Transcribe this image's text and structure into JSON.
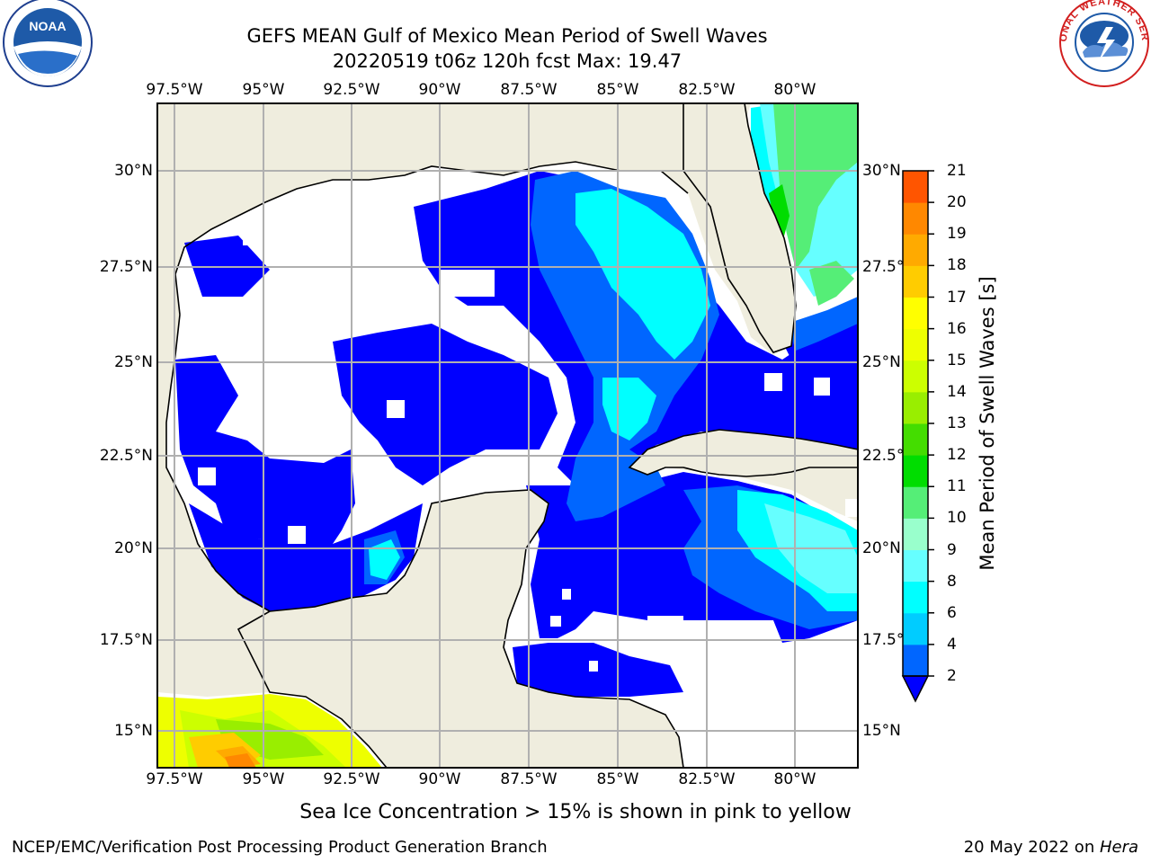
{
  "header": {
    "title_line1": "GEFS MEAN Gulf of Mexico Mean Period of Swell Waves",
    "title_line2": "20220519 t06z 120h fcst   Max: 19.47"
  },
  "logos": {
    "left": {
      "name": "noaa-logo",
      "text": "NOAA"
    },
    "right": {
      "name": "nws-logo",
      "text": "NATIONAL WEATHER SERVICE"
    }
  },
  "map": {
    "lon_labels": [
      "97.5°W",
      "95°W",
      "92.5°W",
      "90°W",
      "87.5°W",
      "85°W",
      "82.5°W",
      "80°W"
    ],
    "lat_labels": [
      "30°N",
      "27.5°N",
      "25°N",
      "22.5°N",
      "20°N",
      "17.5°N",
      "15°N"
    ],
    "colors": {
      "land": "#efedde",
      "grid": "#b0b0b0",
      "coast": "#000000"
    }
  },
  "colorbar": {
    "label": "Mean Period of Swell Waves [s]",
    "ticks": [
      "2",
      "4",
      "6",
      "8",
      "9",
      "10",
      "11",
      "12",
      "13",
      "14",
      "15",
      "16",
      "17",
      "18",
      "19",
      "20",
      "21"
    ],
    "colors": [
      "#0066ff",
      "#00ccff",
      "#00ffff",
      "#66ffff",
      "#99ffcc",
      "#55ee77",
      "#00dd00",
      "#44dd00",
      "#99ee00",
      "#ccff00",
      "#eeff00",
      "#ffff00",
      "#ffcc00",
      "#ffaa00",
      "#ff8800",
      "#ff5500",
      "#ff2200",
      "#ff0000"
    ],
    "extend_color": "#0000ff"
  },
  "note": "Sea Ice Concentration > 15% is shown in pink to yellow",
  "footer": {
    "left": "NCEP/EMC/Verification Post Processing Product Generation Branch",
    "right_prefix": "20 May 2022 on ",
    "right_host": "Hera"
  }
}
